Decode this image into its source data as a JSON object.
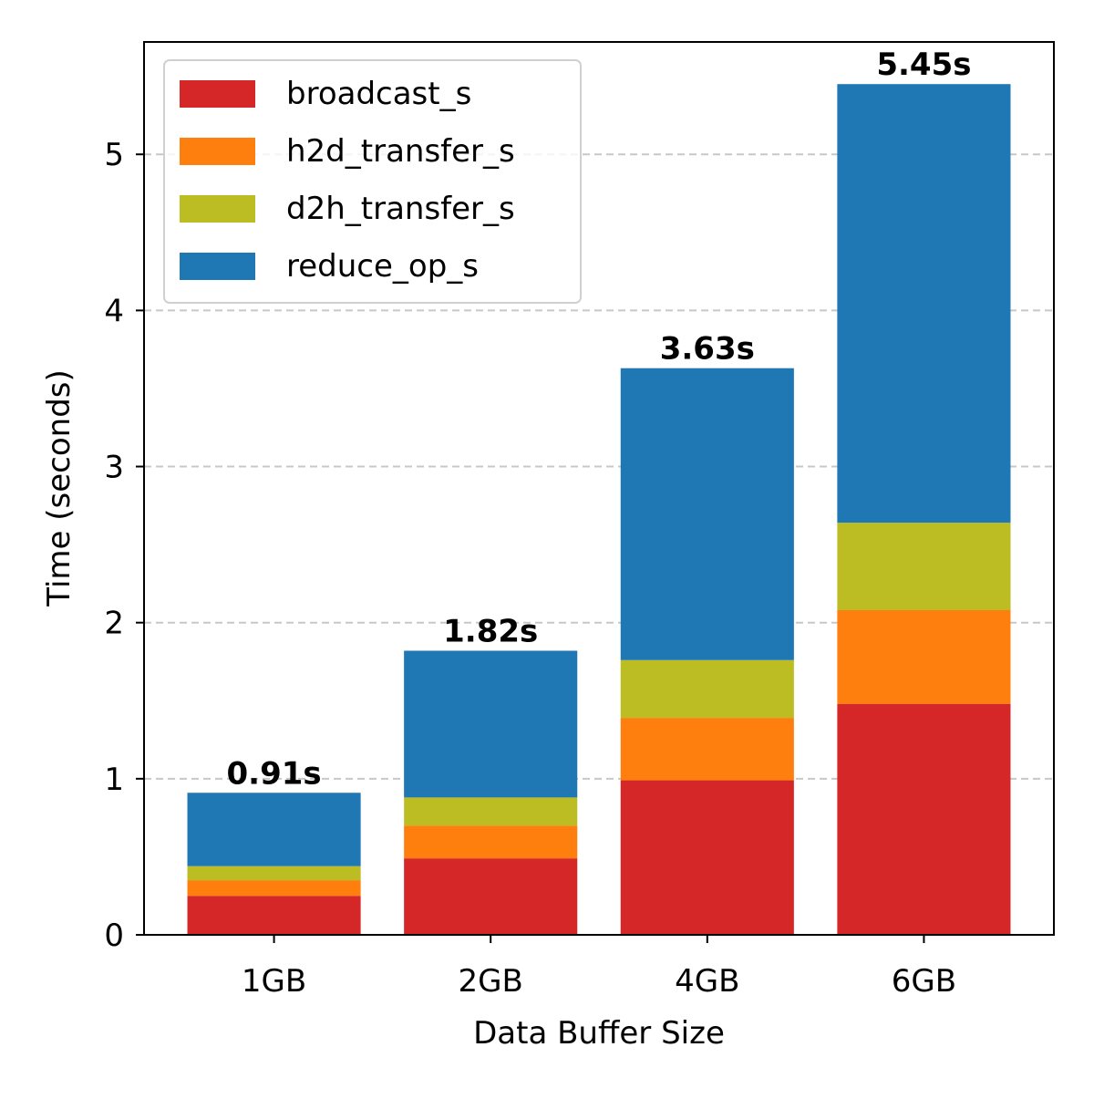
{
  "chart_data": {
    "type": "bar",
    "stacked": true,
    "categories": [
      "1GB",
      "2GB",
      "4GB",
      "6GB"
    ],
    "series": [
      {
        "name": "broadcast_s",
        "color": "#d62728",
        "values": [
          0.25,
          0.49,
          0.99,
          1.48
        ]
      },
      {
        "name": "h2d_transfer_s",
        "color": "#ff7f0e",
        "values": [
          0.1,
          0.21,
          0.4,
          0.6
        ]
      },
      {
        "name": "d2h_transfer_s",
        "color": "#bcbd22",
        "values": [
          0.09,
          0.18,
          0.37,
          0.56
        ]
      },
      {
        "name": "reduce_op_s",
        "color": "#1f77b4",
        "values": [
          0.47,
          0.94,
          1.87,
          2.81
        ]
      }
    ],
    "totals": [
      "0.91s",
      "1.82s",
      "3.63s",
      "5.45s"
    ],
    "total_values": [
      0.91,
      1.82,
      3.63,
      5.45
    ],
    "xlabel": "Data Buffer Size",
    "ylabel": "Time (seconds)",
    "ylim": [
      0,
      5.72
    ],
    "yticks": [
      0,
      1,
      2,
      3,
      4,
      5
    ],
    "grid": "y-dashed",
    "legend_position": "top-left"
  }
}
